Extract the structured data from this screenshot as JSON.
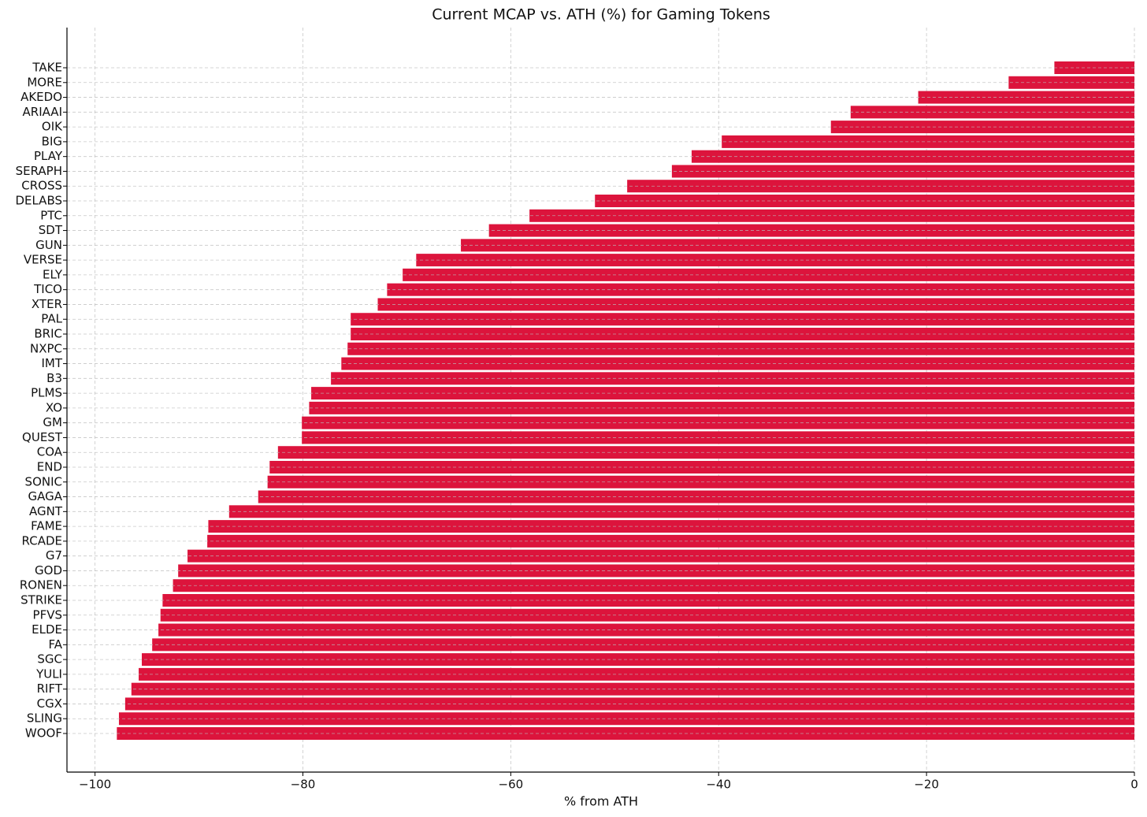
{
  "chart_data": {
    "type": "barh",
    "title": "Current MCAP vs. ATH (%) for Gaming Tokens",
    "x_label": "% from ATH",
    "categories": [
      "TAKE",
      "MORE",
      "AKEDO",
      "ARIAAI",
      "OIK",
      "BIG",
      "PLAY",
      "SERAPH",
      "CROSS",
      "DELABS",
      "PTC",
      "SDT",
      "GUN",
      "VERSE",
      "ELY",
      "TICO",
      "XTER",
      "PAL",
      "BRIC",
      "NXPC",
      "IMT",
      "B3",
      "PLMS",
      "XO",
      "GM",
      "QUEST",
      "COA",
      "END",
      "SONIC",
      "GAGA",
      "AGNT",
      "FAME",
      "RCADE",
      "G7",
      "GOD",
      "RONEN",
      "STRIKE",
      "PFVS",
      "ELDE",
      "FA",
      "SGC",
      "YULI",
      "RIFT",
      "CGX",
      "SLING",
      "WOOF"
    ],
    "values": [
      -7.7,
      -12.1,
      -20.8,
      -27.3,
      -29.2,
      -39.7,
      -42.6,
      -44.5,
      -48.8,
      -51.9,
      -58.2,
      -62.1,
      -64.8,
      -69.1,
      -70.4,
      -71.9,
      -72.8,
      -75.4,
      -75.4,
      -75.7,
      -76.3,
      -77.3,
      -79.2,
      -79.4,
      -80.1,
      -80.1,
      -82.4,
      -83.2,
      -83.4,
      -84.3,
      -87.1,
      -89.1,
      -89.2,
      -91.1,
      -92.0,
      -92.5,
      -93.5,
      -93.7,
      -93.9,
      -94.5,
      -95.5,
      -95.8,
      -96.5,
      -97.1,
      -97.7,
      -97.9
    ],
    "color": "#dc143c",
    "xlim": [
      -102.7,
      0
    ],
    "xticks": [
      {
        "value": -100,
        "label": "−100"
      },
      {
        "value": -80,
        "label": "−80"
      },
      {
        "value": -60,
        "label": "−60"
      },
      {
        "value": -40,
        "label": "−40"
      },
      {
        "value": -20,
        "label": "−20"
      },
      0
    ],
    "grid": true
  }
}
